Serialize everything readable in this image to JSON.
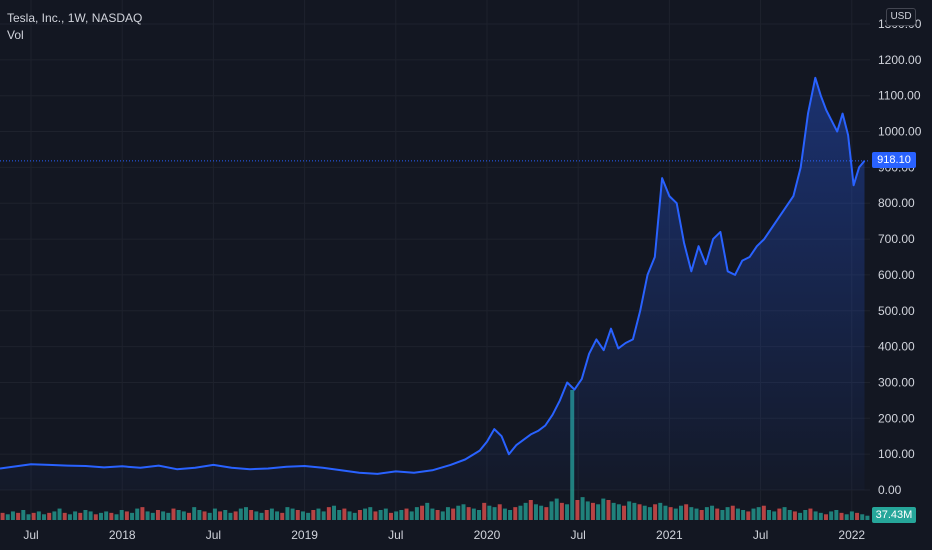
{
  "legend": {
    "symbol": "Tesla, Inc., 1W, NASDAQ",
    "volume_label": "Vol"
  },
  "currency_button": "USD",
  "colors": {
    "background": "#131722",
    "grid": "#1e222d",
    "line": "#2962ff",
    "up": "#26a69a",
    "down": "#ef5350",
    "axis_text": "#d1d4dc"
  },
  "last_price_label": "918.10",
  "last_volume_label": "37.43M",
  "chart_data": {
    "type": "area",
    "ylim": [
      0,
      1300
    ],
    "y_ticks": [
      "0.00",
      "100.00",
      "200.00",
      "300.00",
      "400.00",
      "500.00",
      "600.00",
      "700.00",
      "800.00",
      "900.00",
      "1000.00",
      "1100.00",
      "1200.00",
      "1300.00"
    ],
    "y_tick_values": [
      0,
      100,
      200,
      300,
      400,
      500,
      600,
      700,
      800,
      900,
      1000,
      1100,
      1200,
      1300
    ],
    "x_ticks": [
      "Jul",
      "2018",
      "Jul",
      "2019",
      "Jul",
      "2020",
      "Jul",
      "2021",
      "Jul",
      "2022"
    ],
    "x_tick_values": [
      2017.5,
      2018.0,
      2018.5,
      2019.0,
      2019.5,
      2020.0,
      2020.5,
      2021.0,
      2021.5,
      2022.0
    ],
    "xlim": [
      2017.33,
      2022.1
    ],
    "last_price": 918.1,
    "x": [
      2017.33,
      2017.4,
      2017.5,
      2017.6,
      2017.7,
      2017.8,
      2017.9,
      2018.0,
      2018.1,
      2018.2,
      2018.3,
      2018.4,
      2018.5,
      2018.6,
      2018.7,
      2018.8,
      2018.9,
      2019.0,
      2019.1,
      2019.2,
      2019.3,
      2019.4,
      2019.5,
      2019.6,
      2019.7,
      2019.8,
      2019.88,
      2019.96,
      2020.0,
      2020.04,
      2020.08,
      2020.12,
      2020.16,
      2020.2,
      2020.24,
      2020.28,
      2020.32,
      2020.36,
      2020.4,
      2020.44,
      2020.48,
      2020.52,
      2020.56,
      2020.6,
      2020.64,
      2020.68,
      2020.72,
      2020.76,
      2020.8,
      2020.84,
      2020.88,
      2020.92,
      2020.96,
      2021.0,
      2021.04,
      2021.08,
      2021.12,
      2021.16,
      2021.2,
      2021.24,
      2021.28,
      2021.32,
      2021.36,
      2021.4,
      2021.44,
      2021.48,
      2021.52,
      2021.56,
      2021.6,
      2021.64,
      2021.68,
      2021.72,
      2021.76,
      2021.8,
      2021.83,
      2021.86,
      2021.89,
      2021.92,
      2021.95,
      2021.98,
      2022.01,
      2022.04,
      2022.07
    ],
    "y": [
      60,
      65,
      72,
      70,
      68,
      67,
      63,
      66,
      62,
      68,
      58,
      62,
      70,
      62,
      58,
      60,
      65,
      67,
      62,
      55,
      48,
      45,
      52,
      48,
      55,
      70,
      85,
      110,
      135,
      170,
      150,
      100,
      125,
      140,
      155,
      165,
      180,
      210,
      250,
      300,
      280,
      310,
      380,
      420,
      390,
      450,
      395,
      410,
      420,
      500,
      600,
      650,
      870,
      820,
      800,
      690,
      610,
      680,
      630,
      700,
      720,
      610,
      600,
      640,
      650,
      680,
      700,
      730,
      760,
      790,
      820,
      900,
      1050,
      1150,
      1100,
      1060,
      1030,
      1000,
      1050,
      990,
      850,
      900,
      918
    ]
  },
  "volume_data": [
    5,
    4,
    6,
    5,
    7,
    4,
    5,
    6,
    4,
    5,
    6,
    8,
    5,
    4,
    6,
    5,
    7,
    6,
    4,
    5,
    6,
    5,
    4,
    7,
    6,
    5,
    8,
    9,
    6,
    5,
    7,
    6,
    5,
    8,
    7,
    6,
    5,
    9,
    7,
    6,
    5,
    8,
    6,
    7,
    5,
    6,
    8,
    9,
    7,
    6,
    5,
    7,
    8,
    6,
    5,
    9,
    8,
    7,
    6,
    5,
    7,
    8,
    6,
    9,
    10,
    7,
    8,
    6,
    5,
    7,
    8,
    9,
    6,
    7,
    8,
    5,
    6,
    7,
    8,
    6,
    9,
    10,
    12,
    8,
    7,
    6,
    9,
    8,
    10,
    11,
    9,
    8,
    7,
    12,
    10,
    9,
    11,
    8,
    7,
    9,
    10,
    12,
    14,
    11,
    10,
    9,
    13,
    15,
    12,
    11,
    10,
    14,
    16,
    13,
    12,
    11,
    15,
    14,
    12,
    11,
    10,
    13,
    12,
    11,
    10,
    9,
    11,
    12,
    10,
    9,
    8,
    10,
    11,
    9,
    8,
    7,
    9,
    10,
    8,
    7,
    9,
    10,
    8,
    7,
    6,
    8,
    9,
    10,
    7,
    6,
    8,
    9,
    7,
    6,
    5,
    7,
    8,
    6,
    5,
    4,
    6,
    7,
    5,
    4,
    6,
    5,
    4,
    3
  ],
  "volume_spike_index": 110
}
